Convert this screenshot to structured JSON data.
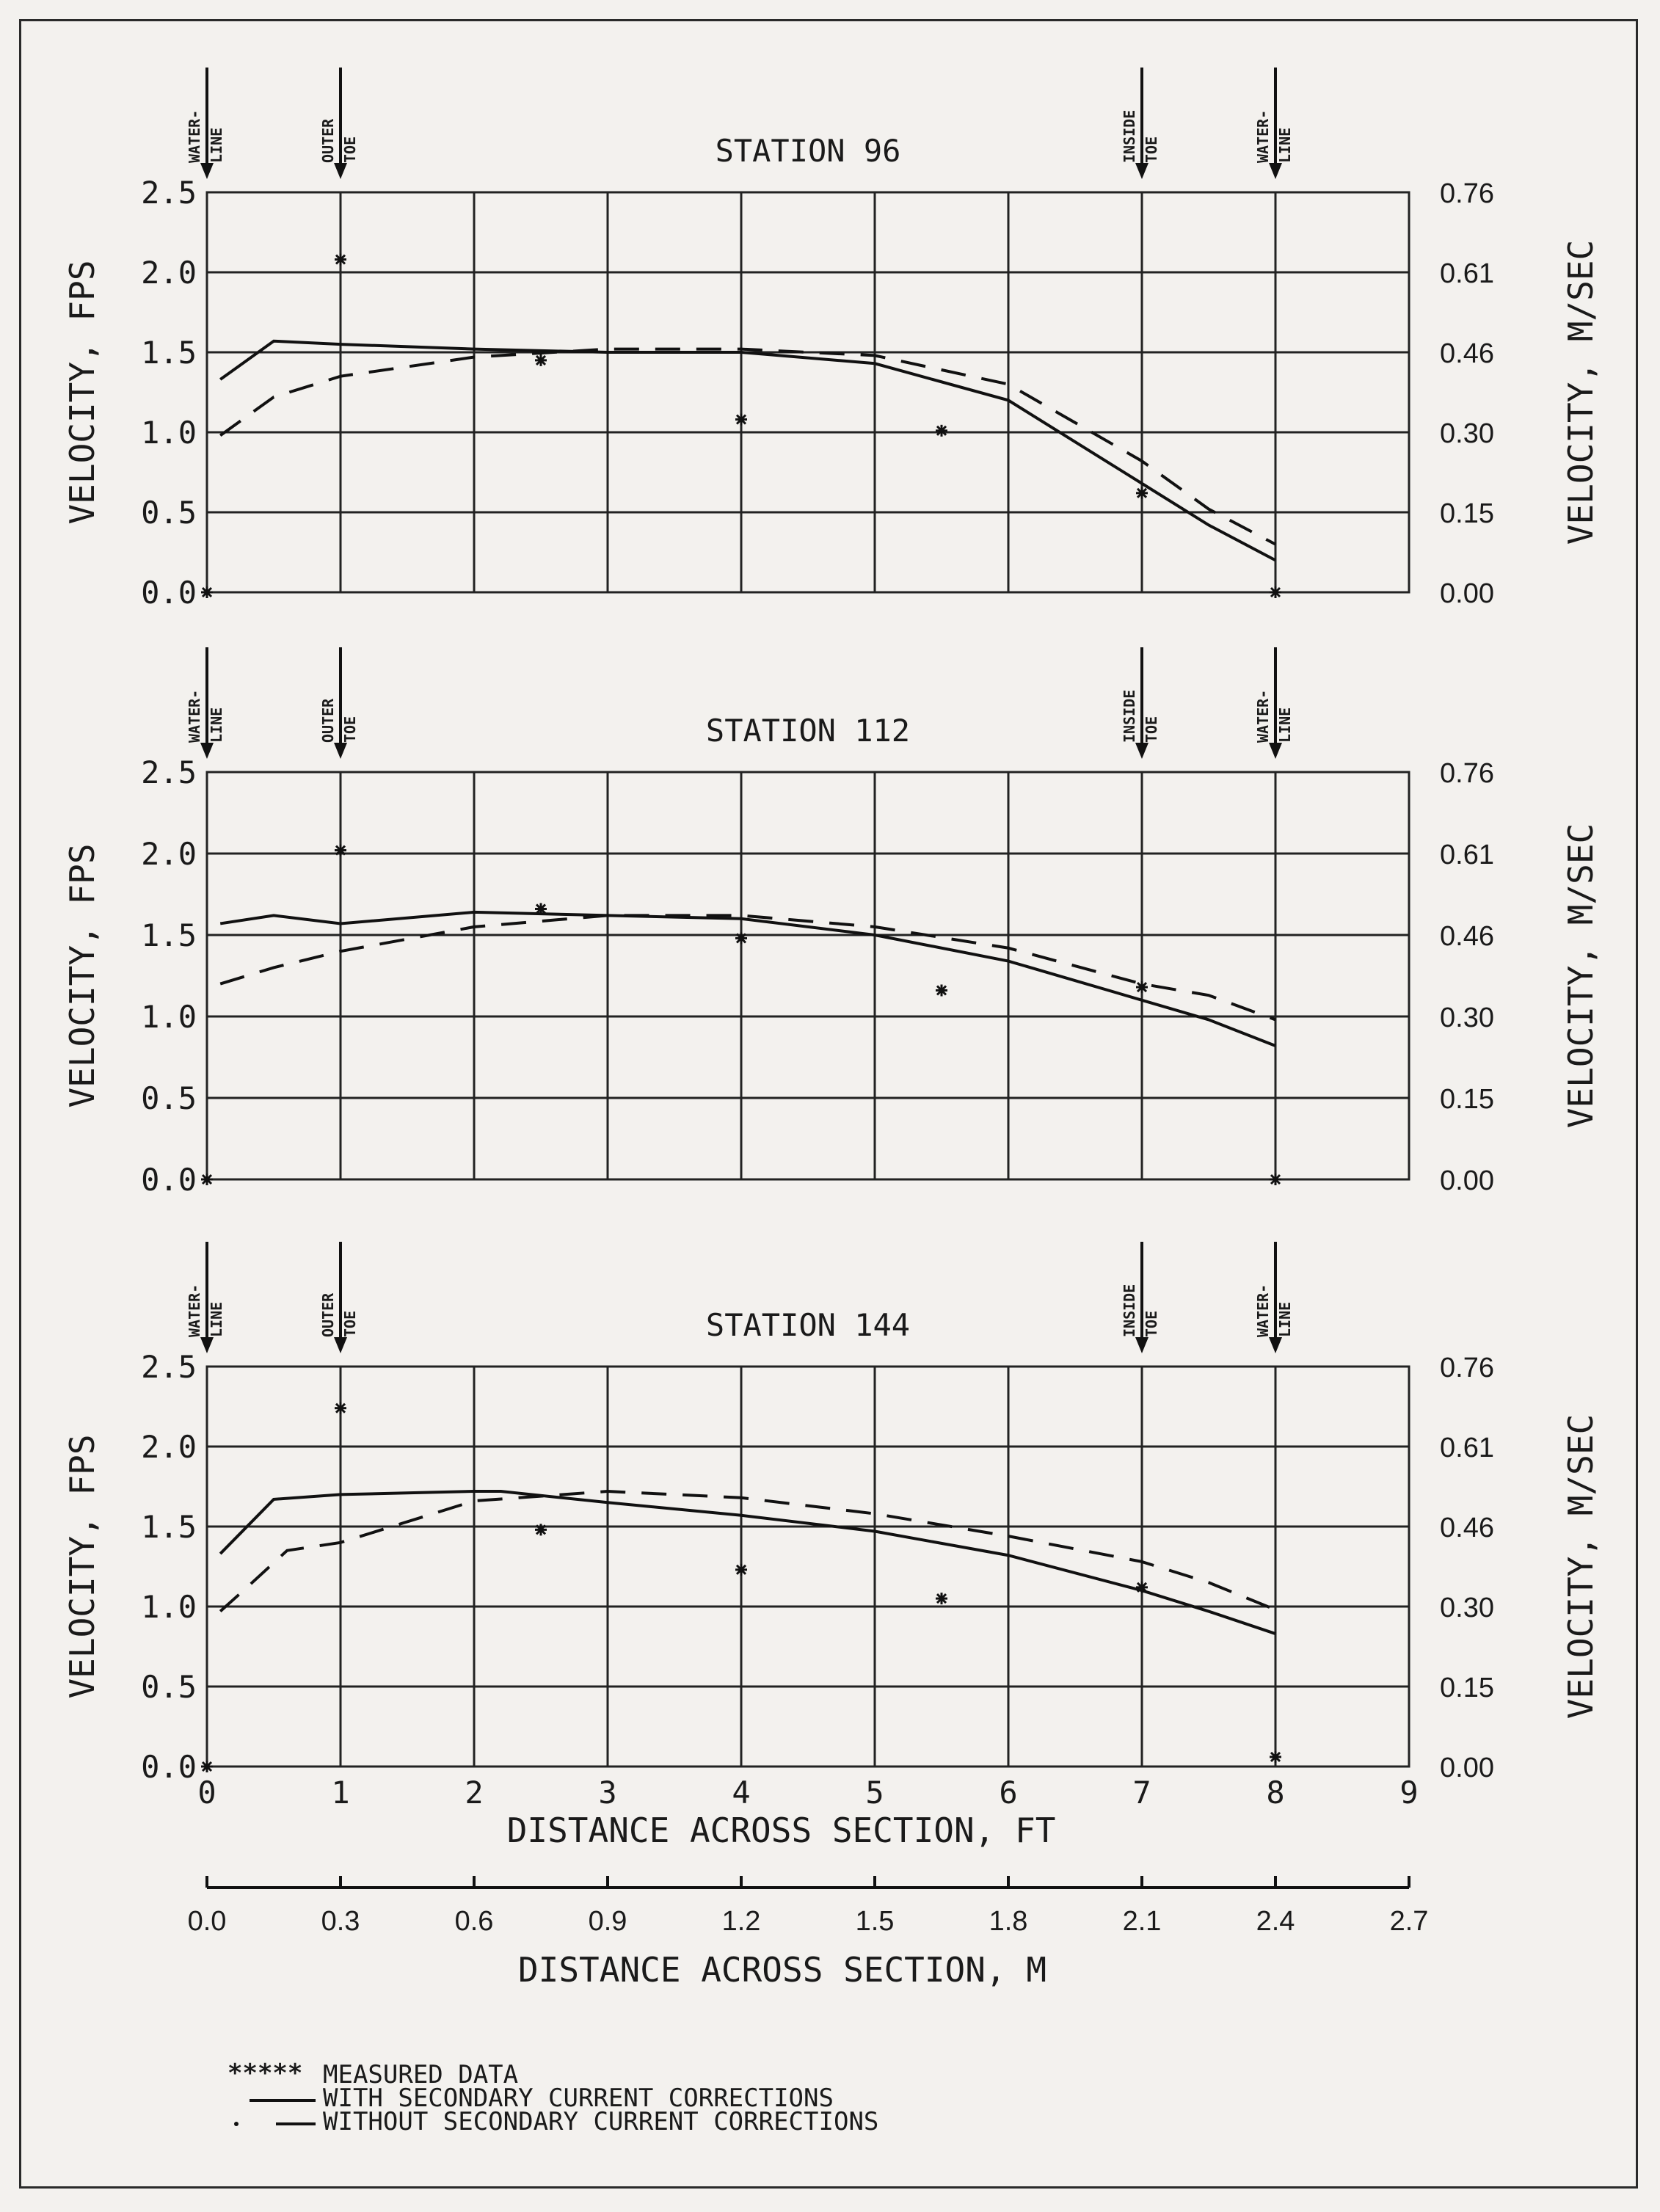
{
  "chart_data": [
    {
      "type": "line",
      "title": "STATION 96",
      "ylabel": "VELOCITY, FPS",
      "ylabel_right": "VELOCITY, M/SEC",
      "ylim": [
        0,
        2.5
      ],
      "xlim": [
        0,
        9
      ],
      "yticks": [
        "0.0",
        "0.5",
        "1.0",
        "1.5",
        "2.0",
        "2.5"
      ],
      "yticks_right": [
        "0.00",
        "0.15",
        "0.30",
        "0.46",
        "0.61",
        "0.76"
      ],
      "markers": [
        {
          "x": 0,
          "lines": [
            "WATER-",
            "LINE"
          ]
        },
        {
          "x": 1,
          "lines": [
            "OUTER",
            "TOE"
          ]
        },
        {
          "x": 7,
          "lines": [
            "INSIDE",
            "TOE"
          ]
        },
        {
          "x": 8,
          "lines": [
            "WATER-",
            "LINE"
          ]
        }
      ],
      "series": [
        {
          "name": "MEASURED DATA",
          "style": "marker",
          "x": [
            0,
            1,
            2.5,
            4,
            5.5,
            7,
            8
          ],
          "y": [
            0.0,
            2.08,
            1.45,
            1.08,
            1.01,
            0.62,
            0.0
          ]
        },
        {
          "name": "WITH SECONDARY CURRENT CORRECTIONS",
          "style": "solid",
          "x": [
            0.1,
            0.5,
            1,
            2,
            3,
            4,
            5,
            6,
            7,
            7.5,
            8
          ],
          "y": [
            1.33,
            1.57,
            1.55,
            1.52,
            1.5,
            1.5,
            1.43,
            1.2,
            0.68,
            0.42,
            0.2
          ]
        },
        {
          "name": "WITHOUT SECONDARY CURRENT CORRECTIONS",
          "style": "dashed",
          "x": [
            0.1,
            0.5,
            1,
            2,
            3,
            4,
            5,
            6,
            7,
            7.5,
            8
          ],
          "y": [
            0.98,
            1.22,
            1.35,
            1.47,
            1.52,
            1.52,
            1.48,
            1.3,
            0.82,
            0.52,
            0.3
          ]
        }
      ]
    },
    {
      "type": "line",
      "title": "STATION 112",
      "ylabel": "VELOCITY, FPS",
      "ylabel_right": "VELOCITY, M/SEC",
      "ylim": [
        0,
        2.5
      ],
      "xlim": [
        0,
        9
      ],
      "yticks": [
        "0.0",
        "0.5",
        "1.0",
        "1.5",
        "2.0",
        "2.5"
      ],
      "yticks_right": [
        "0.00",
        "0.15",
        "0.30",
        "0.46",
        "0.61",
        "0.76"
      ],
      "markers": [
        {
          "x": 0,
          "lines": [
            "WATER-",
            "LINE"
          ]
        },
        {
          "x": 1,
          "lines": [
            "OUTER",
            "TOE"
          ]
        },
        {
          "x": 7,
          "lines": [
            "INSIDE",
            "TOE"
          ]
        },
        {
          "x": 8,
          "lines": [
            "WATER-",
            "LINE"
          ]
        }
      ],
      "series": [
        {
          "name": "MEASURED DATA",
          "style": "marker",
          "x": [
            0,
            1,
            2.5,
            4,
            5.5,
            7,
            8
          ],
          "y": [
            0.0,
            2.02,
            1.66,
            1.48,
            1.16,
            1.18,
            0.0
          ]
        },
        {
          "name": "WITH SECONDARY CURRENT CORRECTIONS",
          "style": "solid",
          "x": [
            0.1,
            0.5,
            1,
            2,
            3,
            4,
            5,
            6,
            7,
            7.5,
            8
          ],
          "y": [
            1.57,
            1.62,
            1.57,
            1.64,
            1.62,
            1.6,
            1.5,
            1.34,
            1.1,
            0.98,
            0.82
          ]
        },
        {
          "name": "WITHOUT SECONDARY CURRENT CORRECTIONS",
          "style": "dashed",
          "x": [
            0.1,
            0.5,
            1,
            2,
            3,
            4,
            5,
            6,
            7,
            7.5,
            8
          ],
          "y": [
            1.2,
            1.3,
            1.4,
            1.55,
            1.62,
            1.62,
            1.55,
            1.42,
            1.2,
            1.13,
            0.98
          ]
        }
      ]
    },
    {
      "type": "line",
      "title": "STATION 144",
      "ylabel": "VELOCITY, FPS",
      "ylabel_right": "VELOCITY, M/SEC",
      "ylim": [
        0,
        2.5
      ],
      "xlim": [
        0,
        9
      ],
      "yticks": [
        "0.0",
        "0.5",
        "1.0",
        "1.5",
        "2.0",
        "2.5"
      ],
      "yticks_right": [
        "0.00",
        "0.15",
        "0.30",
        "0.46",
        "0.61",
        "0.76"
      ],
      "xticks": [
        "0",
        "1",
        "2",
        "3",
        "4",
        "5",
        "6",
        "7",
        "8",
        "9"
      ],
      "xlabel": "DISTANCE ACROSS SECTION, FT",
      "xlabel_secondary": "DISTANCE ACROSS SECTION, M",
      "xticks_secondary": [
        "0.0",
        "0.3",
        "0.6",
        "0.9",
        "1.2",
        "1.5",
        "1.8",
        "2.1",
        "2.4",
        "2.7"
      ],
      "markers": [
        {
          "x": 0,
          "lines": [
            "WATER-",
            "LINE"
          ]
        },
        {
          "x": 1,
          "lines": [
            "OUTER",
            "TOE"
          ]
        },
        {
          "x": 7,
          "lines": [
            "INSIDE",
            "TOE"
          ]
        },
        {
          "x": 8,
          "lines": [
            "WATER-",
            "LINE"
          ]
        }
      ],
      "series": [
        {
          "name": "MEASURED DATA",
          "style": "marker",
          "x": [
            0,
            1,
            2.5,
            4,
            5.5,
            7,
            8
          ],
          "y": [
            0.0,
            2.24,
            1.48,
            1.23,
            1.05,
            1.12,
            0.06
          ]
        },
        {
          "name": "WITH SECONDARY CURRENT CORRECTIONS",
          "style": "solid",
          "x": [
            0.1,
            0.5,
            1,
            2,
            2.2,
            3,
            4,
            5,
            6,
            7,
            7.5,
            8
          ],
          "y": [
            1.33,
            1.67,
            1.7,
            1.72,
            1.72,
            1.65,
            1.57,
            1.47,
            1.32,
            1.1,
            0.97,
            0.83
          ]
        },
        {
          "name": "WITHOUT SECONDARY CURRENT CORRECTIONS",
          "style": "dashed",
          "x": [
            0.1,
            0.3,
            0.6,
            1,
            2,
            3,
            4,
            5,
            6,
            7,
            7.5,
            8
          ],
          "y": [
            0.97,
            1.12,
            1.35,
            1.4,
            1.66,
            1.72,
            1.68,
            1.58,
            1.44,
            1.28,
            1.15,
            0.98
          ]
        }
      ]
    }
  ],
  "legend": {
    "measured_symbol": "*****",
    "measured": "MEASURED DATA",
    "with_corrections": "WITH SECONDARY CURRENT CORRECTIONS",
    "without_corrections": "WITHOUT SECONDARY CURRENT CORRECTIONS"
  }
}
